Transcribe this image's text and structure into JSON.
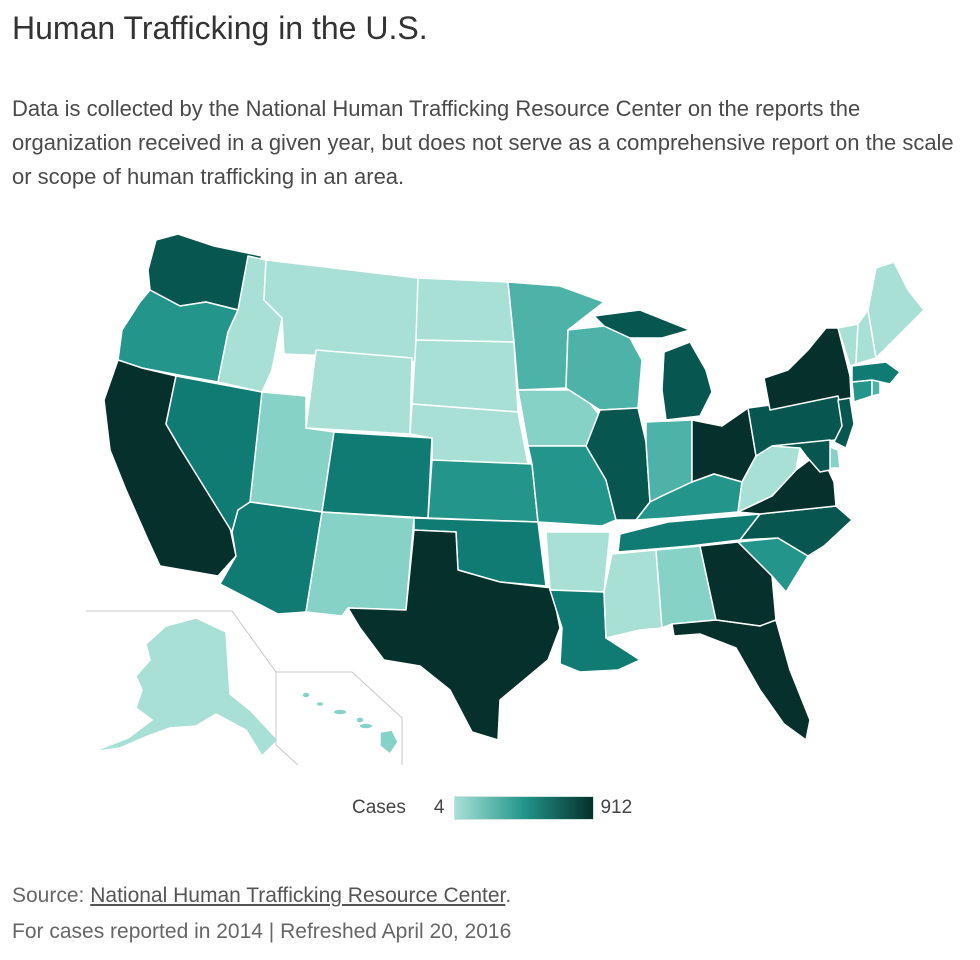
{
  "title": "Human Trafficking in the U.S.",
  "description": "Data is collected by the National Human Trafficking Resource Center on the reports the organization received in a given year, but does not serve as a comprehensive report on the scale or scope of human trafficking in an area.",
  "legend": {
    "label": "Cases",
    "min": "4",
    "max": "912",
    "color_low": "#a8e0d6",
    "color_high": "#05302b"
  },
  "source": {
    "prefix": "Source: ",
    "link_text": "National Human Trafficking Resource Center",
    "suffix": "."
  },
  "note": "For cases reported in 2014 | Refreshed April 20, 2016",
  "palette": {
    "c1": "#a8e0d6",
    "c2": "#86d2c7",
    "c3": "#4db3a8",
    "c4": "#23958a",
    "c5": "#0f7b72",
    "c6": "#07564f",
    "c7": "#05302b",
    "border": "#ffffff",
    "inset_line": "#c9c9c9"
  },
  "states": [
    {
      "name": "Washington",
      "level": 6
    },
    {
      "name": "Oregon",
      "level": 4
    },
    {
      "name": "California",
      "level": 7
    },
    {
      "name": "Nevada",
      "level": 5
    },
    {
      "name": "Idaho",
      "level": 1
    },
    {
      "name": "Montana",
      "level": 1
    },
    {
      "name": "Wyoming",
      "level": 1
    },
    {
      "name": "Utah",
      "level": 2
    },
    {
      "name": "Arizona",
      "level": 5
    },
    {
      "name": "Colorado",
      "level": 5
    },
    {
      "name": "New Mexico",
      "level": 2
    },
    {
      "name": "North Dakota",
      "level": 1
    },
    {
      "name": "South Dakota",
      "level": 1
    },
    {
      "name": "Nebraska",
      "level": 1
    },
    {
      "name": "Kansas",
      "level": 4
    },
    {
      "name": "Oklahoma",
      "level": 5
    },
    {
      "name": "Texas",
      "level": 7
    },
    {
      "name": "Minnesota",
      "level": 3
    },
    {
      "name": "Iowa",
      "level": 2
    },
    {
      "name": "Missouri",
      "level": 4
    },
    {
      "name": "Arkansas",
      "level": 1
    },
    {
      "name": "Louisiana",
      "level": 5
    },
    {
      "name": "Wisconsin",
      "level": 3
    },
    {
      "name": "Illinois",
      "level": 6
    },
    {
      "name": "Michigan",
      "level": 6
    },
    {
      "name": "Indiana",
      "level": 3
    },
    {
      "name": "Ohio",
      "level": 7
    },
    {
      "name": "Kentucky",
      "level": 4
    },
    {
      "name": "Tennessee",
      "level": 5
    },
    {
      "name": "Mississippi",
      "level": 1
    },
    {
      "name": "Alabama",
      "level": 2
    },
    {
      "name": "Georgia",
      "level": 7
    },
    {
      "name": "Florida",
      "level": 7
    },
    {
      "name": "South Carolina",
      "level": 4
    },
    {
      "name": "North Carolina",
      "level": 6
    },
    {
      "name": "Virginia",
      "level": 7
    },
    {
      "name": "West Virginia",
      "level": 1
    },
    {
      "name": "Pennsylvania",
      "level": 6
    },
    {
      "name": "New York",
      "level": 7
    },
    {
      "name": "New Jersey",
      "level": 6
    },
    {
      "name": "Delaware",
      "level": 2
    },
    {
      "name": "Maryland",
      "level": 6
    },
    {
      "name": "Connecticut",
      "level": 4
    },
    {
      "name": "Rhode Island",
      "level": 3
    },
    {
      "name": "Massachusetts",
      "level": 5
    },
    {
      "name": "Vermont",
      "level": 1
    },
    {
      "name": "New Hampshire",
      "level": 1
    },
    {
      "name": "Maine",
      "level": 1
    },
    {
      "name": "Alaska",
      "level": 1
    },
    {
      "name": "Hawaii",
      "level": 2
    }
  ]
}
